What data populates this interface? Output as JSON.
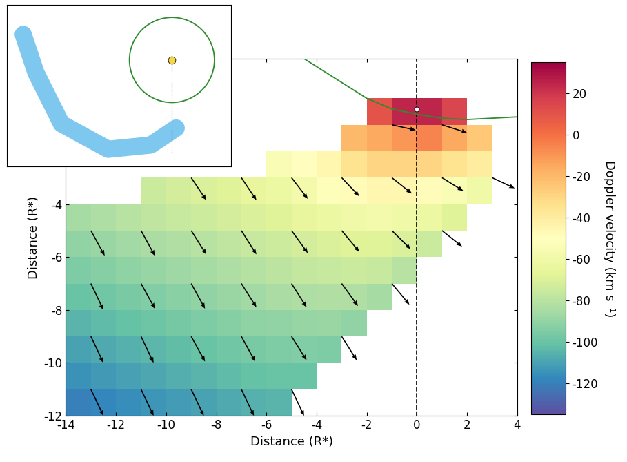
{
  "chart_data": {
    "type": "heatmap",
    "x_label": "Distance (R*)",
    "y_label": "Distance (R*)",
    "xlim": [
      -14,
      4
    ],
    "ylim": [
      -12,
      1.5
    ],
    "xticks": [
      -14,
      -12,
      -10,
      -8,
      -6,
      -4,
      -2,
      0,
      2,
      4
    ],
    "yticks": [
      -12,
      -10,
      -8,
      -6,
      -4
    ],
    "x_edges": [
      -14,
      -13,
      -12,
      -11,
      -10,
      -9,
      -8,
      -7,
      -6,
      -5,
      -4,
      -3,
      -2,
      -1,
      0,
      1,
      2,
      3,
      4
    ],
    "y_edges": [
      -12,
      -11,
      -10,
      -9,
      -8,
      -7,
      -6,
      -5,
      -4,
      -3,
      -2,
      -1,
      0
    ],
    "cells": [
      [
        -120,
        -118,
        -116,
        -114,
        -112,
        -110,
        -108,
        -106,
        -105,
        null,
        null,
        null,
        null,
        null,
        null,
        null,
        null,
        null
      ],
      [
        -115,
        -113,
        -111,
        -109,
        -107,
        -105,
        -103,
        -101,
        -100,
        -100,
        null,
        null,
        null,
        null,
        null,
        null,
        null,
        null
      ],
      [
        -110,
        -108,
        -106,
        -104,
        -102,
        -100,
        -98,
        -96,
        -95,
        -94,
        -95,
        null,
        null,
        null,
        null,
        null,
        null,
        null
      ],
      [
        -105,
        -103,
        -101,
        -99,
        -97,
        -95,
        -93,
        -91,
        -90,
        -89,
        -88,
        -90,
        null,
        null,
        null,
        null,
        null,
        null
      ],
      [
        -100,
        -98,
        -96,
        -94,
        -92,
        -90,
        -88,
        -86,
        -84,
        -83,
        -82,
        -82,
        -85,
        null,
        null,
        null,
        null,
        null
      ],
      [
        -95,
        -93,
        -91,
        -89,
        -87,
        -85,
        -83,
        -81,
        -79,
        -77,
        -76,
        -75,
        -76,
        -80,
        null,
        null,
        null,
        null
      ],
      [
        -90,
        -88,
        -86,
        -84,
        -82,
        -80,
        -78,
        -76,
        -74,
        -72,
        -70,
        -68,
        -68,
        -70,
        -75,
        null,
        null,
        null
      ],
      [
        -85,
        -83,
        -80,
        -78,
        -76,
        -74,
        -72,
        -70,
        -68,
        -65,
        -62,
        -60,
        -58,
        -60,
        -62,
        -68,
        null,
        null
      ],
      [
        null,
        null,
        null,
        -75,
        -72,
        -70,
        -68,
        -65,
        -62,
        -58,
        -52,
        -48,
        -45,
        -45,
        -48,
        -55,
        -60,
        null
      ],
      [
        null,
        null,
        null,
        null,
        null,
        null,
        null,
        null,
        -55,
        -50,
        -45,
        -35,
        -30,
        -30,
        -30,
        -35,
        -40,
        null
      ],
      [
        null,
        null,
        null,
        null,
        null,
        null,
        null,
        null,
        null,
        null,
        null,
        -20,
        -15,
        -10,
        -5,
        -15,
        -25,
        null
      ],
      [
        null,
        null,
        null,
        null,
        null,
        null,
        null,
        null,
        null,
        null,
        null,
        null,
        10,
        25,
        25,
        15,
        null,
        null
      ]
    ],
    "colorbar": {
      "label": "Doppler velocity (km s⁻¹)",
      "lim": [
        -135,
        35
      ],
      "ticks": [
        -120,
        -100,
        -80,
        -60,
        -40,
        -20,
        0,
        20
      ]
    },
    "arrows": {
      "x": [
        -13,
        -11,
        -9,
        -7,
        -5,
        -3,
        -1,
        1,
        3
      ],
      "y": [
        -11,
        -9,
        -7,
        -5,
        -3,
        -1
      ],
      "u": [
        [
          0.5,
          0.5,
          0.5,
          0.5,
          0.5,
          null,
          null,
          null,
          null
        ],
        [
          0.5,
          0.5,
          0.55,
          0.55,
          0.6,
          0.6,
          null,
          null,
          null
        ],
        [
          0.5,
          0.55,
          0.55,
          0.6,
          0.6,
          0.65,
          0.7,
          null,
          null
        ],
        [
          0.55,
          0.55,
          0.6,
          0.6,
          0.65,
          0.7,
          0.75,
          0.8,
          null
        ],
        [
          null,
          null,
          0.6,
          0.6,
          0.65,
          0.7,
          0.8,
          0.85,
          0.9
        ],
        [
          null,
          null,
          null,
          null,
          null,
          null,
          0.95,
          1.0,
          null
        ]
      ],
      "v": [
        [
          -1.0,
          -1.0,
          -1.0,
          -1.0,
          -1.0,
          null,
          null,
          null,
          null
        ],
        [
          -1.0,
          -1.0,
          -0.95,
          -0.95,
          -0.9,
          -0.9,
          null,
          null,
          null
        ],
        [
          -1.0,
          -0.95,
          -0.95,
          -0.9,
          -0.9,
          -0.85,
          -0.8,
          null,
          null
        ],
        [
          -0.95,
          -0.95,
          -0.9,
          -0.9,
          -0.85,
          -0.8,
          -0.7,
          -0.6,
          null
        ],
        [
          null,
          null,
          -0.85,
          -0.85,
          -0.8,
          -0.7,
          -0.6,
          -0.5,
          -0.4
        ],
        [
          null,
          null,
          null,
          null,
          null,
          null,
          -0.2,
          -0.3,
          null
        ]
      ]
    },
    "curve": {
      "color": "#2e8b2e",
      "x": [
        -4.5,
        -3,
        -2,
        -1,
        0,
        1,
        2,
        3,
        4
      ],
      "y": [
        1.5,
        0.6,
        0.0,
        -0.4,
        -0.6,
        -0.75,
        -0.8,
        -0.75,
        -0.7
      ]
    },
    "vline_x": 0,
    "planet": [
      0,
      -0.4
    ],
    "inset": {
      "circle_center": [
        0,
        0
      ],
      "circle_radius": 1,
      "circle_color": "#2e8b2e",
      "star_color": "#f5d742",
      "tail_color": "#7ec8f0",
      "tail_x": [
        0.1,
        -0.5,
        -1.5,
        -2.6,
        -3.2,
        -3.5
      ],
      "tail_y": [
        -1.6,
        -2.0,
        -2.1,
        -1.5,
        -0.3,
        0.6
      ],
      "vline_to": -2.2
    }
  }
}
